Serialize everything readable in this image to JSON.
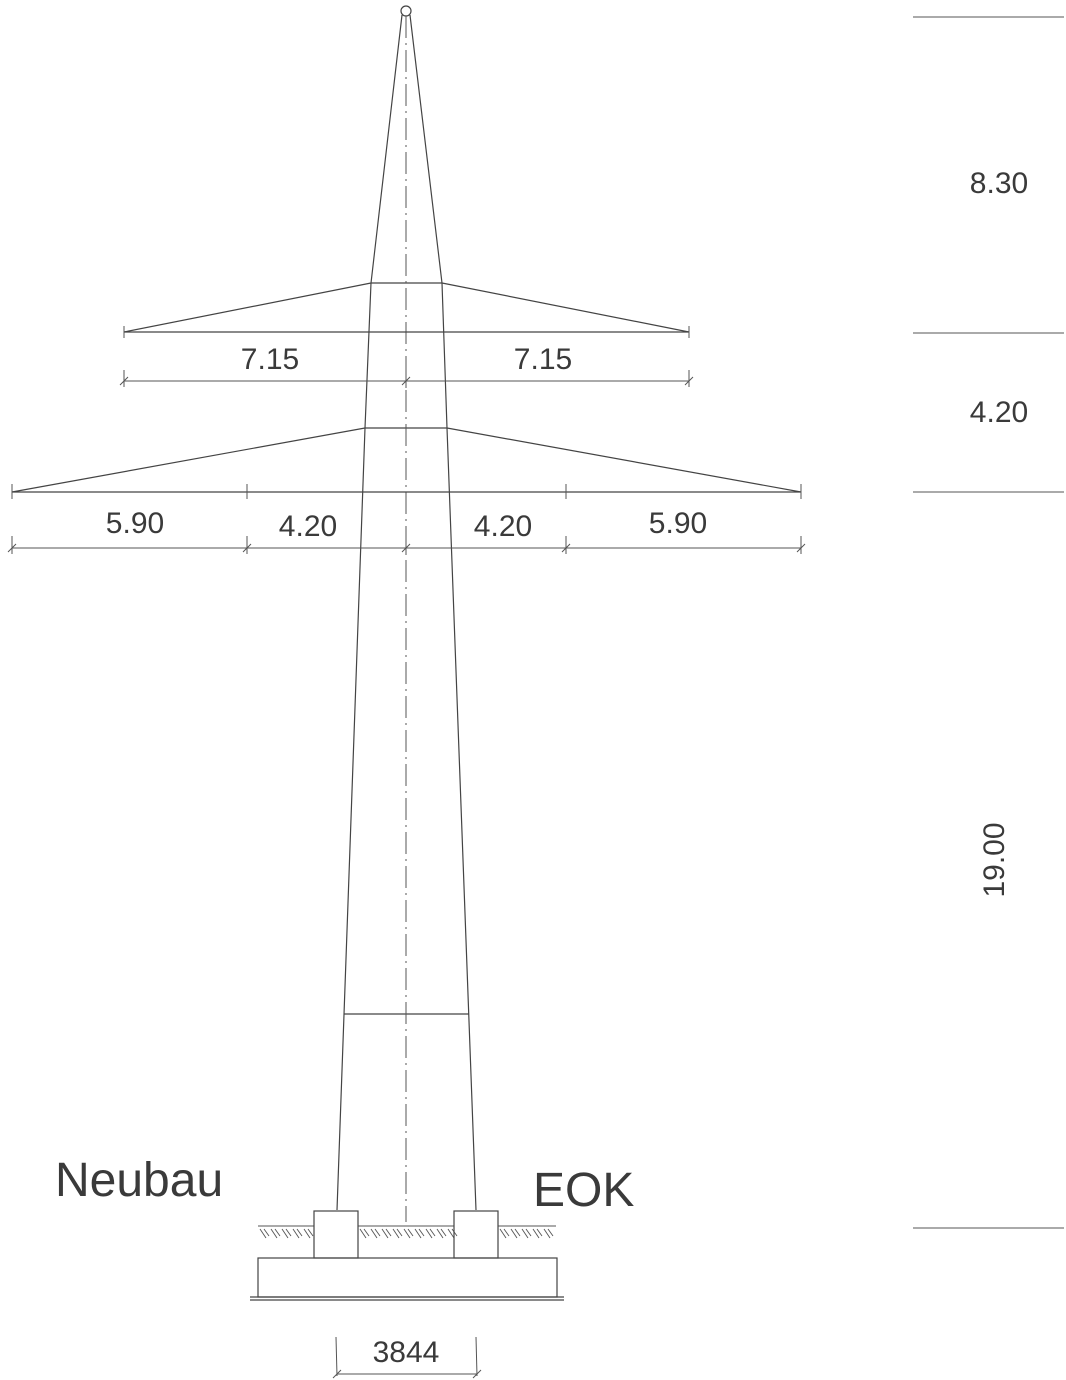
{
  "heights": {
    "top": "8.30",
    "middle": "4.20",
    "lower": "19.00"
  },
  "upper_arm": {
    "left": "7.15",
    "right": "7.15"
  },
  "lower_arm": {
    "outer_left": "5.90",
    "inner_left": "4.20",
    "inner_right": "4.20",
    "outer_right": "5.90"
  },
  "labels": {
    "left": "Neubau",
    "right": "EOK"
  },
  "foundation_width": "3844"
}
